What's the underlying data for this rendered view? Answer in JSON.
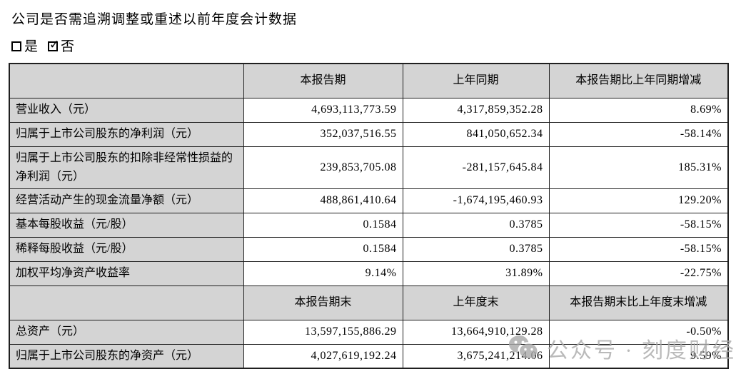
{
  "intro": {
    "question": "公司是否需追溯调整或重述以前年度会计数据",
    "option_yes": "是",
    "option_no": "否",
    "checked_option": "否"
  },
  "table": {
    "period_header": {
      "label": "",
      "current": "本报告期",
      "prior": "上年同期",
      "change": "本报告期比上年同期增减"
    },
    "period_rows": [
      {
        "label": "营业收入（元）",
        "current": "4,693,113,773.59",
        "prior": "4,317,859,352.28",
        "change": "8.69%"
      },
      {
        "label": "归属于上市公司股东的净利润（元）",
        "current": "352,037,516.55",
        "prior": "841,050,652.34",
        "change": "-58.14%"
      },
      {
        "label": "归属于上市公司股东的扣除非经常性损益的净利润（元）",
        "current": "239,853,705.08",
        "prior": "-281,157,645.84",
        "change": "185.31%"
      },
      {
        "label": "经营活动产生的现金流量净额（元）",
        "current": "488,861,410.64",
        "prior": "-1,674,195,460.93",
        "change": "129.20%"
      },
      {
        "label": "基本每股收益（元/股）",
        "current": "0.1584",
        "prior": "0.3785",
        "change": "-58.15%"
      },
      {
        "label": "稀释每股收益（元/股）",
        "current": "0.1584",
        "prior": "0.3785",
        "change": "-58.15%"
      },
      {
        "label": "加权平均净资产收益率",
        "current": "9.14%",
        "prior": "31.89%",
        "change": "-22.75%"
      }
    ],
    "eop_header": {
      "label": "",
      "current": "本报告期末",
      "prior": "上年度末",
      "change": "本报告期末比上年度末增减"
    },
    "eop_rows": [
      {
        "label": "总资产（元）",
        "current": "13,597,155,886.29",
        "prior": "13,664,910,129.28",
        "change": "-0.50%"
      },
      {
        "label": "归属于上市公司股东的净资产（元）",
        "current": "4,027,619,192.24",
        "prior": "3,675,241,214.06",
        "change": "9.59%"
      }
    ]
  },
  "watermark": {
    "icon": "wechat-icon",
    "text": "公众号 · 刻度财经"
  },
  "colors": {
    "header_bg": "#d4d4d4",
    "border": "#1f1f1f",
    "text": "#000000",
    "watermark": "#a9a9a9"
  }
}
